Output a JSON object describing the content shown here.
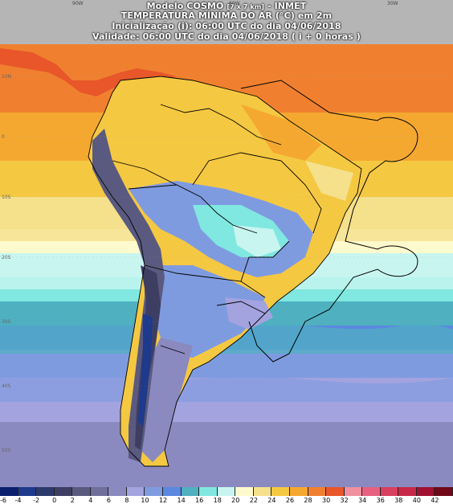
{
  "header": {
    "line1": "Modelo COSMO",
    "line1_small": "[7 x 7 km]",
    "line1_tail": "- INMET",
    "line2": "TEMPERATURA MÍNIMA DO AR (°C) em 2m",
    "line3": "Inicialização (i): 06:00 UTC do dia 04/06/2018",
    "line4": "Validade: 06:00 UTC do dia 04/06/2018 ( i + 0 horas )"
  },
  "axes": {
    "lon_labels": [
      "90W",
      "60W",
      "30W"
    ],
    "lat_labels": [
      "10N",
      "0",
      "10S",
      "20S",
      "30S",
      "40S",
      "50S"
    ]
  },
  "colorbar": {
    "labels": [
      "-6",
      "-4",
      "-2",
      "0",
      "2",
      "4",
      "6",
      "8",
      "10",
      "12",
      "14",
      "16",
      "18",
      "20",
      "22",
      "24",
      "26",
      "28",
      "30",
      "32",
      "34",
      "36",
      "38",
      "40",
      "42"
    ],
    "colors": [
      "#0b1f6e",
      "#1d3a8c",
      "#2b3a6a",
      "#3e3e63",
      "#5a5a80",
      "#6f6f9c",
      "#8a8ac0",
      "#a3a3e0",
      "#7f9be0",
      "#5b88e0",
      "#4fb0c0",
      "#80e8e0",
      "#c8f5f0",
      "#fffacd",
      "#f5e08c",
      "#f5c842",
      "#f5a830",
      "#f08030",
      "#e8562a",
      "#f090a0",
      "#e86080",
      "#d84060",
      "#c82848",
      "#a01030",
      "#700818"
    ]
  },
  "map_fields": {
    "variable": "Temperatura mínima do ar em 2m",
    "units": "°C"
  }
}
